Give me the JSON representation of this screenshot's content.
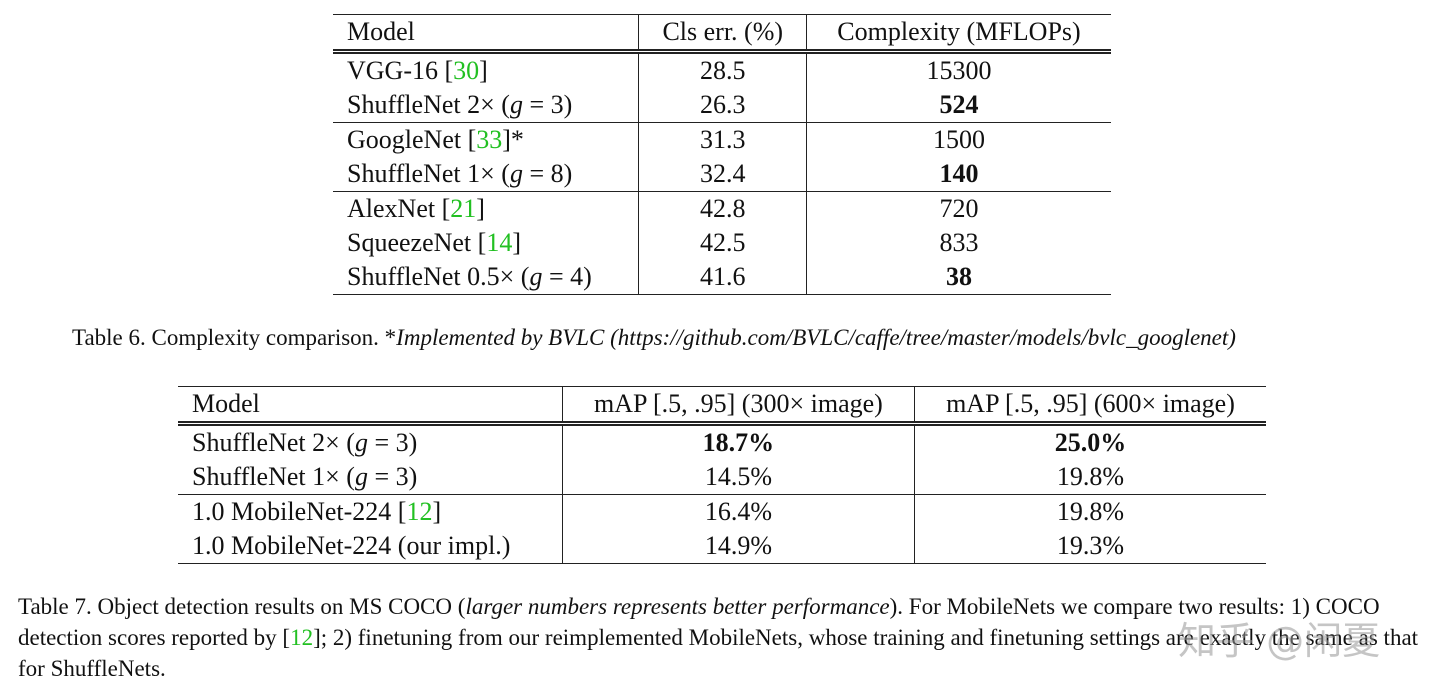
{
  "tables": [
    {
      "header": [
        "Model",
        "Cls err. (%)",
        "Complexity (MFLOPs)"
      ],
      "groups": [
        [
          [
            [
              "VGG-16 [",
              {
                "text": "30",
                "cite": true
              },
              "]"
            ],
            28.5,
            15300
          ],
          [
            [
              "ShuffleNet 2× (",
              {
                "text": "g",
                "math": true
              },
              " = 3)"
            ],
            26.3,
            {
              "text": "524",
              "bold": true
            }
          ]
        ],
        [
          [
            [
              "GoogleNet [",
              {
                "text": "33",
                "cite": true
              },
              "]*"
            ],
            31.3,
            1500
          ],
          [
            [
              "ShuffleNet 1× (",
              {
                "text": "g",
                "math": true
              },
              " = 8)"
            ],
            32.4,
            {
              "text": "140",
              "bold": true
            }
          ]
        ],
        [
          [
            [
              "AlexNet [",
              {
                "text": "21",
                "cite": true
              },
              "]"
            ],
            42.8,
            720
          ],
          [
            [
              "SqueezeNet [",
              {
                "text": "14",
                "cite": true
              },
              "]"
            ],
            42.5,
            833
          ],
          [
            [
              "ShuffleNet 0.5× (",
              {
                "text": "g",
                "math": true
              },
              " = 4)"
            ],
            41.6,
            {
              "text": "38",
              "bold": true
            }
          ]
        ]
      ],
      "caption": [
        "Table 6.  Complexity comparison. *",
        {
          "text": "Implemented by BVLC (https://github.com/BVLC/caffe/tree/master/models/bvlc_googlenet)",
          "italic": true
        }
      ]
    },
    {
      "header": [
        "Model",
        "mAP [.5, .95] (300× image)",
        "mAP [.5, .95] (600× image)"
      ],
      "groups": [
        [
          [
            [
              "ShuffleNet 2× (",
              {
                "text": "g",
                "math": true
              },
              " = 3)"
            ],
            {
              "text": "18.7%",
              "bold": true
            },
            {
              "text": "25.0%",
              "bold": true
            }
          ],
          [
            [
              "ShuffleNet 1× (",
              {
                "text": "g",
                "math": true
              },
              " = 3)"
            ],
            "14.5%",
            "19.8%"
          ]
        ],
        [
          [
            [
              "1.0 MobileNet-224 [",
              {
                "text": "12",
                "cite": true
              },
              "]"
            ],
            "16.4%",
            "19.8%"
          ],
          [
            "1.0 MobileNet-224 (our impl.)",
            "14.9%",
            "19.3%"
          ]
        ]
      ],
      "caption": [
        "Table 7.  Object detection results on MS COCO (",
        {
          "text": "larger numbers represents better performance",
          "italic": true
        },
        "). For MobileNets we compare two results: 1) COCO detection scores reported by [",
        {
          "text": "12",
          "cite": true
        },
        "]; 2) finetuning from our reimplemented MobileNets, whose training and finetuning settings are exactly the same as that for ShuffleNets."
      ]
    }
  ],
  "watermark": "知乎 @闲夏"
}
